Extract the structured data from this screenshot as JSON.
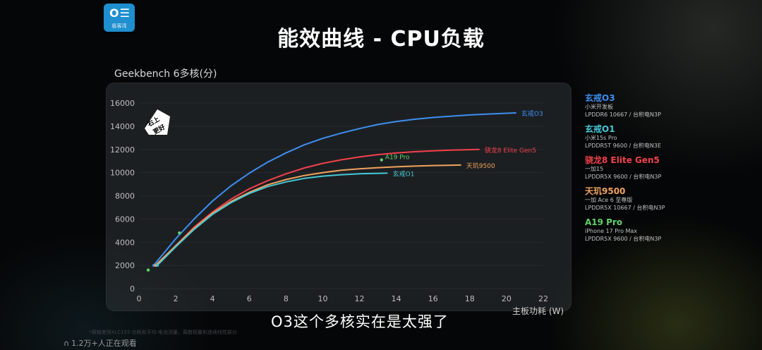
{
  "brand": {
    "logo_text": "极客湾",
    "colors": {
      "logo_bg": "#1e8fcf"
    }
  },
  "title": "能效曲线 - CPU负载",
  "subtitle": "O3这个多核实在是太强了",
  "footnote": "*横轴使用XLC155·功耗和平均·电池测量，离散相量和连续线性部分",
  "live_text": "1.2万+人正在观看",
  "badge_text": "右上更好",
  "legend": [
    {
      "name": "玄戒O3",
      "color": "#3d8ef0",
      "line1": "小米开发板",
      "line2": "LPDDR6 10667 / 台积电N3P"
    },
    {
      "name": "玄戒O1",
      "color": "#45c8d6",
      "line1": "小米15s Pro",
      "line2": "LPDDR5T 9600 / 台积电N3E"
    },
    {
      "name": "骁龙8 Elite Gen5",
      "color": "#f2414b",
      "line1": "一加15",
      "line2": "LPDDR5X 9600 / 台积电N3P"
    },
    {
      "name": "天玑9500",
      "color": "#f0a35e",
      "line1": "一加 Ace 6 至尊版",
      "line2": "LPDDR5X 10667 / 台积电N3P"
    },
    {
      "name": "A19 Pro",
      "color": "#5fd16a",
      "line1": "iPhone 17 Pro Max",
      "line2": "LPDDR5X 9600 / 台积电N3P"
    }
  ],
  "chart_data": {
    "type": "line",
    "title": "Geekbench 6多核(分)",
    "xlabel": "主板功耗 (W)",
    "ylabel": "Geekbench 6多核(分)",
    "xlim": [
      0,
      22
    ],
    "ylim": [
      0,
      16000
    ],
    "x_ticks": [
      0,
      2,
      4,
      6,
      8,
      10,
      12,
      14,
      16,
      18,
      20,
      22
    ],
    "y_ticks": [
      0,
      2000,
      4000,
      6000,
      8000,
      10000,
      12000,
      14000,
      16000
    ],
    "grid": true,
    "series": [
      {
        "name": "玄戒O3",
        "label": "玄戒O3",
        "color": "#3d8ef0",
        "x": [
          0.8,
          2,
          3,
          4,
          5,
          6,
          7,
          8,
          9,
          10,
          11,
          12,
          13,
          14,
          15,
          16,
          17,
          18,
          19,
          20,
          20.5
        ],
        "y": [
          2000,
          4300,
          6000,
          7550,
          8850,
          9950,
          10900,
          11700,
          12400,
          12950,
          13400,
          13800,
          14150,
          14400,
          14600,
          14750,
          14870,
          14970,
          15050,
          15120,
          15150
        ]
      },
      {
        "name": "骁龙8 Elite Gen5",
        "label": "骁龙8 Elite Gen5",
        "color": "#f2414b",
        "x": [
          0.9,
          2,
          3,
          4,
          5,
          6,
          7,
          8,
          9,
          10,
          11,
          12,
          13,
          14,
          15,
          16,
          17,
          18.5
        ],
        "y": [
          2000,
          3700,
          5300,
          6600,
          7700,
          8600,
          9300,
          9900,
          10400,
          10800,
          11100,
          11350,
          11550,
          11700,
          11800,
          11880,
          11940,
          12000
        ]
      },
      {
        "name": "天玑9500",
        "label": "天玑9500",
        "color": "#f0a35e",
        "x": [
          0.9,
          2,
          3,
          4,
          5,
          6,
          7,
          8,
          9,
          10,
          11,
          12,
          13,
          14,
          15,
          16,
          17.5
        ],
        "y": [
          2000,
          3700,
          5200,
          6500,
          7500,
          8300,
          8950,
          9400,
          9750,
          10000,
          10200,
          10330,
          10430,
          10500,
          10560,
          10610,
          10650
        ]
      },
      {
        "name": "玄戒O1",
        "label": "玄戒O1",
        "color": "#45c8d6",
        "x": [
          1.0,
          2,
          3,
          4,
          5,
          6,
          7,
          8,
          9,
          10,
          11,
          12,
          13.5
        ],
        "y": [
          2000,
          3600,
          5100,
          6400,
          7400,
          8200,
          8800,
          9200,
          9500,
          9700,
          9820,
          9900,
          9950
        ]
      }
    ],
    "points": [
      {
        "name": "A19 Pro",
        "label": "A19 Pro",
        "color": "#5fd16a",
        "x": 13.2,
        "y": 11100
      },
      {
        "name": "A19 Pro",
        "label": "",
        "color": "#5fd16a",
        "x": 2.2,
        "y": 4800
      },
      {
        "name": "A19 Pro",
        "label": "",
        "color": "#5fd16a",
        "x": 0.5,
        "y": 1600
      }
    ]
  }
}
